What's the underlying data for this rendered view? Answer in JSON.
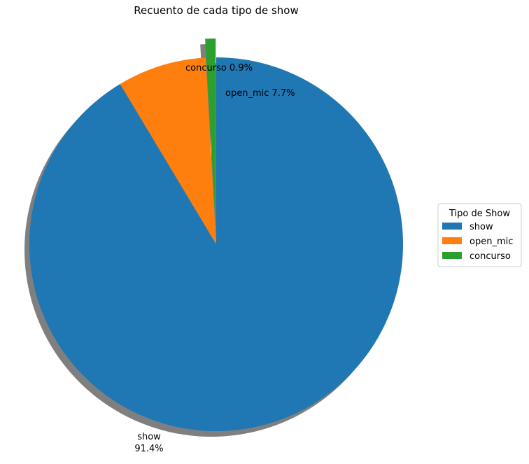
{
  "chart_data": {
    "type": "pie",
    "title": "Recuento de cada tipo de show",
    "slices": [
      {
        "label": "show",
        "value": 91.4,
        "pct_label": "91.4%",
        "color": "#1f77b4",
        "explode": false
      },
      {
        "label": "open_mic",
        "value": 7.7,
        "pct_label": "7.7%",
        "color": "#ff7f0e",
        "explode": false
      },
      {
        "label": "concurso",
        "value": 0.9,
        "pct_label": "0.9%",
        "color": "#2ca02c",
        "explode": true
      }
    ],
    "start_angle_deg": 90,
    "direction": "clockwise",
    "shadow": true,
    "legend": {
      "title": "Tipo de Show",
      "placement": "center-right",
      "entries": [
        "show",
        "open_mic",
        "concurso"
      ]
    }
  }
}
